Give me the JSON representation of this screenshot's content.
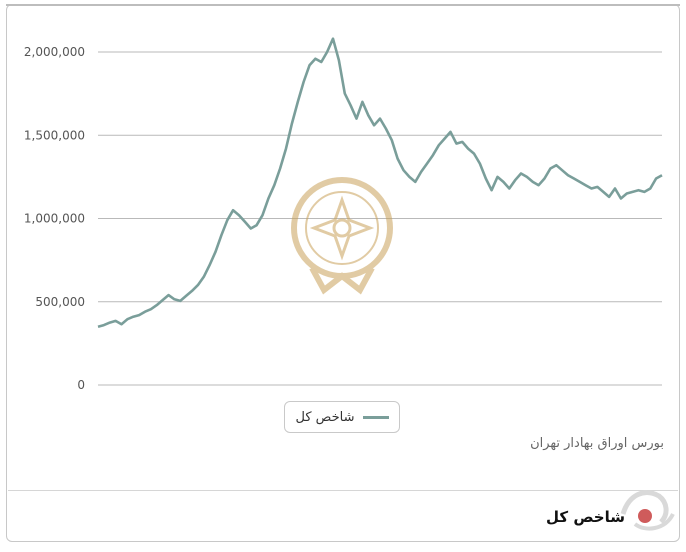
{
  "chart_data": {
    "type": "line",
    "title": "",
    "xlabel": "",
    "ylabel": "",
    "ylim": [
      0,
      2100000
    ],
    "yticks": [
      0,
      500000,
      1000000,
      1500000,
      2000000
    ],
    "ytick_labels": [
      "0",
      "500,000",
      "1,000,000",
      "1,500,000",
      "2,000,000"
    ],
    "grid": true,
    "legend_position": "bottom",
    "series": [
      {
        "name": "شاخص کل",
        "color": "#7a9e9a",
        "values": [
          350000,
          360000,
          375000,
          385000,
          365000,
          395000,
          410000,
          420000,
          440000,
          455000,
          480000,
          510000,
          540000,
          515000,
          505000,
          535000,
          565000,
          600000,
          650000,
          720000,
          800000,
          900000,
          990000,
          1050000,
          1020000,
          980000,
          940000,
          960000,
          1020000,
          1120000,
          1200000,
          1300000,
          1420000,
          1570000,
          1700000,
          1820000,
          1920000,
          1960000,
          1940000,
          2000000,
          2080000,
          1950000,
          1750000,
          1680000,
          1600000,
          1700000,
          1620000,
          1560000,
          1600000,
          1540000,
          1470000,
          1360000,
          1290000,
          1250000,
          1220000,
          1280000,
          1330000,
          1380000,
          1440000,
          1480000,
          1520000,
          1450000,
          1460000,
          1420000,
          1390000,
          1330000,
          1240000,
          1170000,
          1250000,
          1220000,
          1180000,
          1230000,
          1270000,
          1250000,
          1220000,
          1200000,
          1240000,
          1300000,
          1320000,
          1290000,
          1260000,
          1240000,
          1220000,
          1200000,
          1180000,
          1190000,
          1160000,
          1130000,
          1180000,
          1120000,
          1150000,
          1160000,
          1170000,
          1160000,
          1180000,
          1240000,
          1260000
        ]
      }
    ]
  },
  "legend": {
    "label": "شاخص کل"
  },
  "source_text": "بورس اوراق بهادار تهران",
  "footer": {
    "title": "شاخص کل"
  },
  "watermark": {
    "name": "tehran-stock-exchange-seal"
  },
  "colors": {
    "line": "#7a9e9a",
    "grid": "#b9b9b9",
    "watermark": "#c9a25a"
  }
}
